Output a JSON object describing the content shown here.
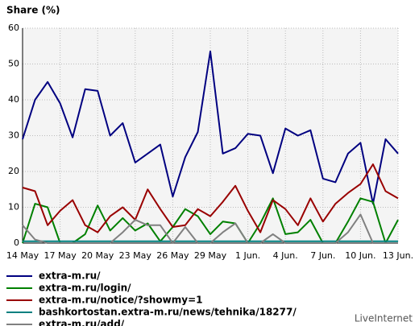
{
  "chart_data": {
    "type": "line",
    "title": "Share (%)",
    "brand": "LiveInternet",
    "categories": [
      "14 May",
      null,
      null,
      "17 May",
      null,
      null,
      "20 May",
      null,
      null,
      "23 May",
      null,
      null,
      "26 May",
      null,
      null,
      "29 May",
      null,
      null,
      "1 Jun.",
      null,
      null,
      "4 Jun.",
      null,
      null,
      "7 Jun.",
      null,
      null,
      "10 Jun.",
      null,
      null,
      "13 Jun."
    ],
    "ylim": [
      0,
      60
    ],
    "yticks": [
      0,
      10,
      20,
      30,
      40,
      50,
      60
    ],
    "grid": true,
    "series": [
      {
        "name": "extra-m.ru/",
        "color": "#000080",
        "values": [
          29,
          40,
          45,
          39,
          29.5,
          43,
          42.5,
          30,
          33.5,
          22.5,
          25,
          27.5,
          13,
          24,
          31,
          53.5,
          25,
          26.5,
          30.5,
          30,
          19.5,
          32,
          30,
          31.5,
          18,
          17,
          25,
          28,
          11,
          29,
          25
        ]
      },
      {
        "name": "extra-m.ru/login/",
        "color": "#008000",
        "values": [
          0,
          11,
          10,
          0,
          0,
          2.5,
          10.5,
          3.5,
          7,
          3.5,
          5.5,
          0.5,
          4.5,
          9.5,
          7.5,
          2.5,
          6,
          5.5,
          0,
          5.5,
          12.5,
          2.5,
          3,
          6.5,
          0,
          0,
          6,
          12.5,
          11.5,
          0,
          6.5
        ]
      },
      {
        "name": "extra-m.ru/notice/?showmy=1",
        "color": "#990000",
        "values": [
          15.5,
          14.5,
          5,
          9,
          12,
          5,
          3,
          7.5,
          10,
          6.5,
          15,
          9.5,
          4.5,
          5,
          9.5,
          7.5,
          11.5,
          16,
          9,
          3,
          12,
          9.5,
          5,
          12.5,
          6,
          11,
          14,
          16.5,
          22,
          14.5,
          12.5
        ]
      },
      {
        "name": "bashkortostan.extra-m.ru/news/tehnika/18277/",
        "color": "#008080",
        "values": [
          0.5,
          0.5,
          0.5,
          0.5,
          0.5,
          0.5,
          0.5,
          0.5,
          0.5,
          0.5,
          0.5,
          0.5,
          0.5,
          0.5,
          0.5,
          0.5,
          0.5,
          0.5,
          0.5,
          0.5,
          0.5,
          0.5,
          0.5,
          0.5,
          0.5,
          0.5,
          0.5,
          0.5,
          0.5,
          0.5,
          0.5
        ]
      },
      {
        "name": "extra-m.ru/add/",
        "color": "#808080",
        "values": [
          5,
          1,
          0,
          0,
          0,
          0,
          0,
          0,
          3,
          6.5,
          5,
          5,
          0,
          4.5,
          0,
          0,
          3,
          5.5,
          0,
          0,
          2.5,
          0,
          0,
          0,
          0,
          0,
          3,
          8,
          0,
          0,
          0
        ]
      }
    ]
  }
}
